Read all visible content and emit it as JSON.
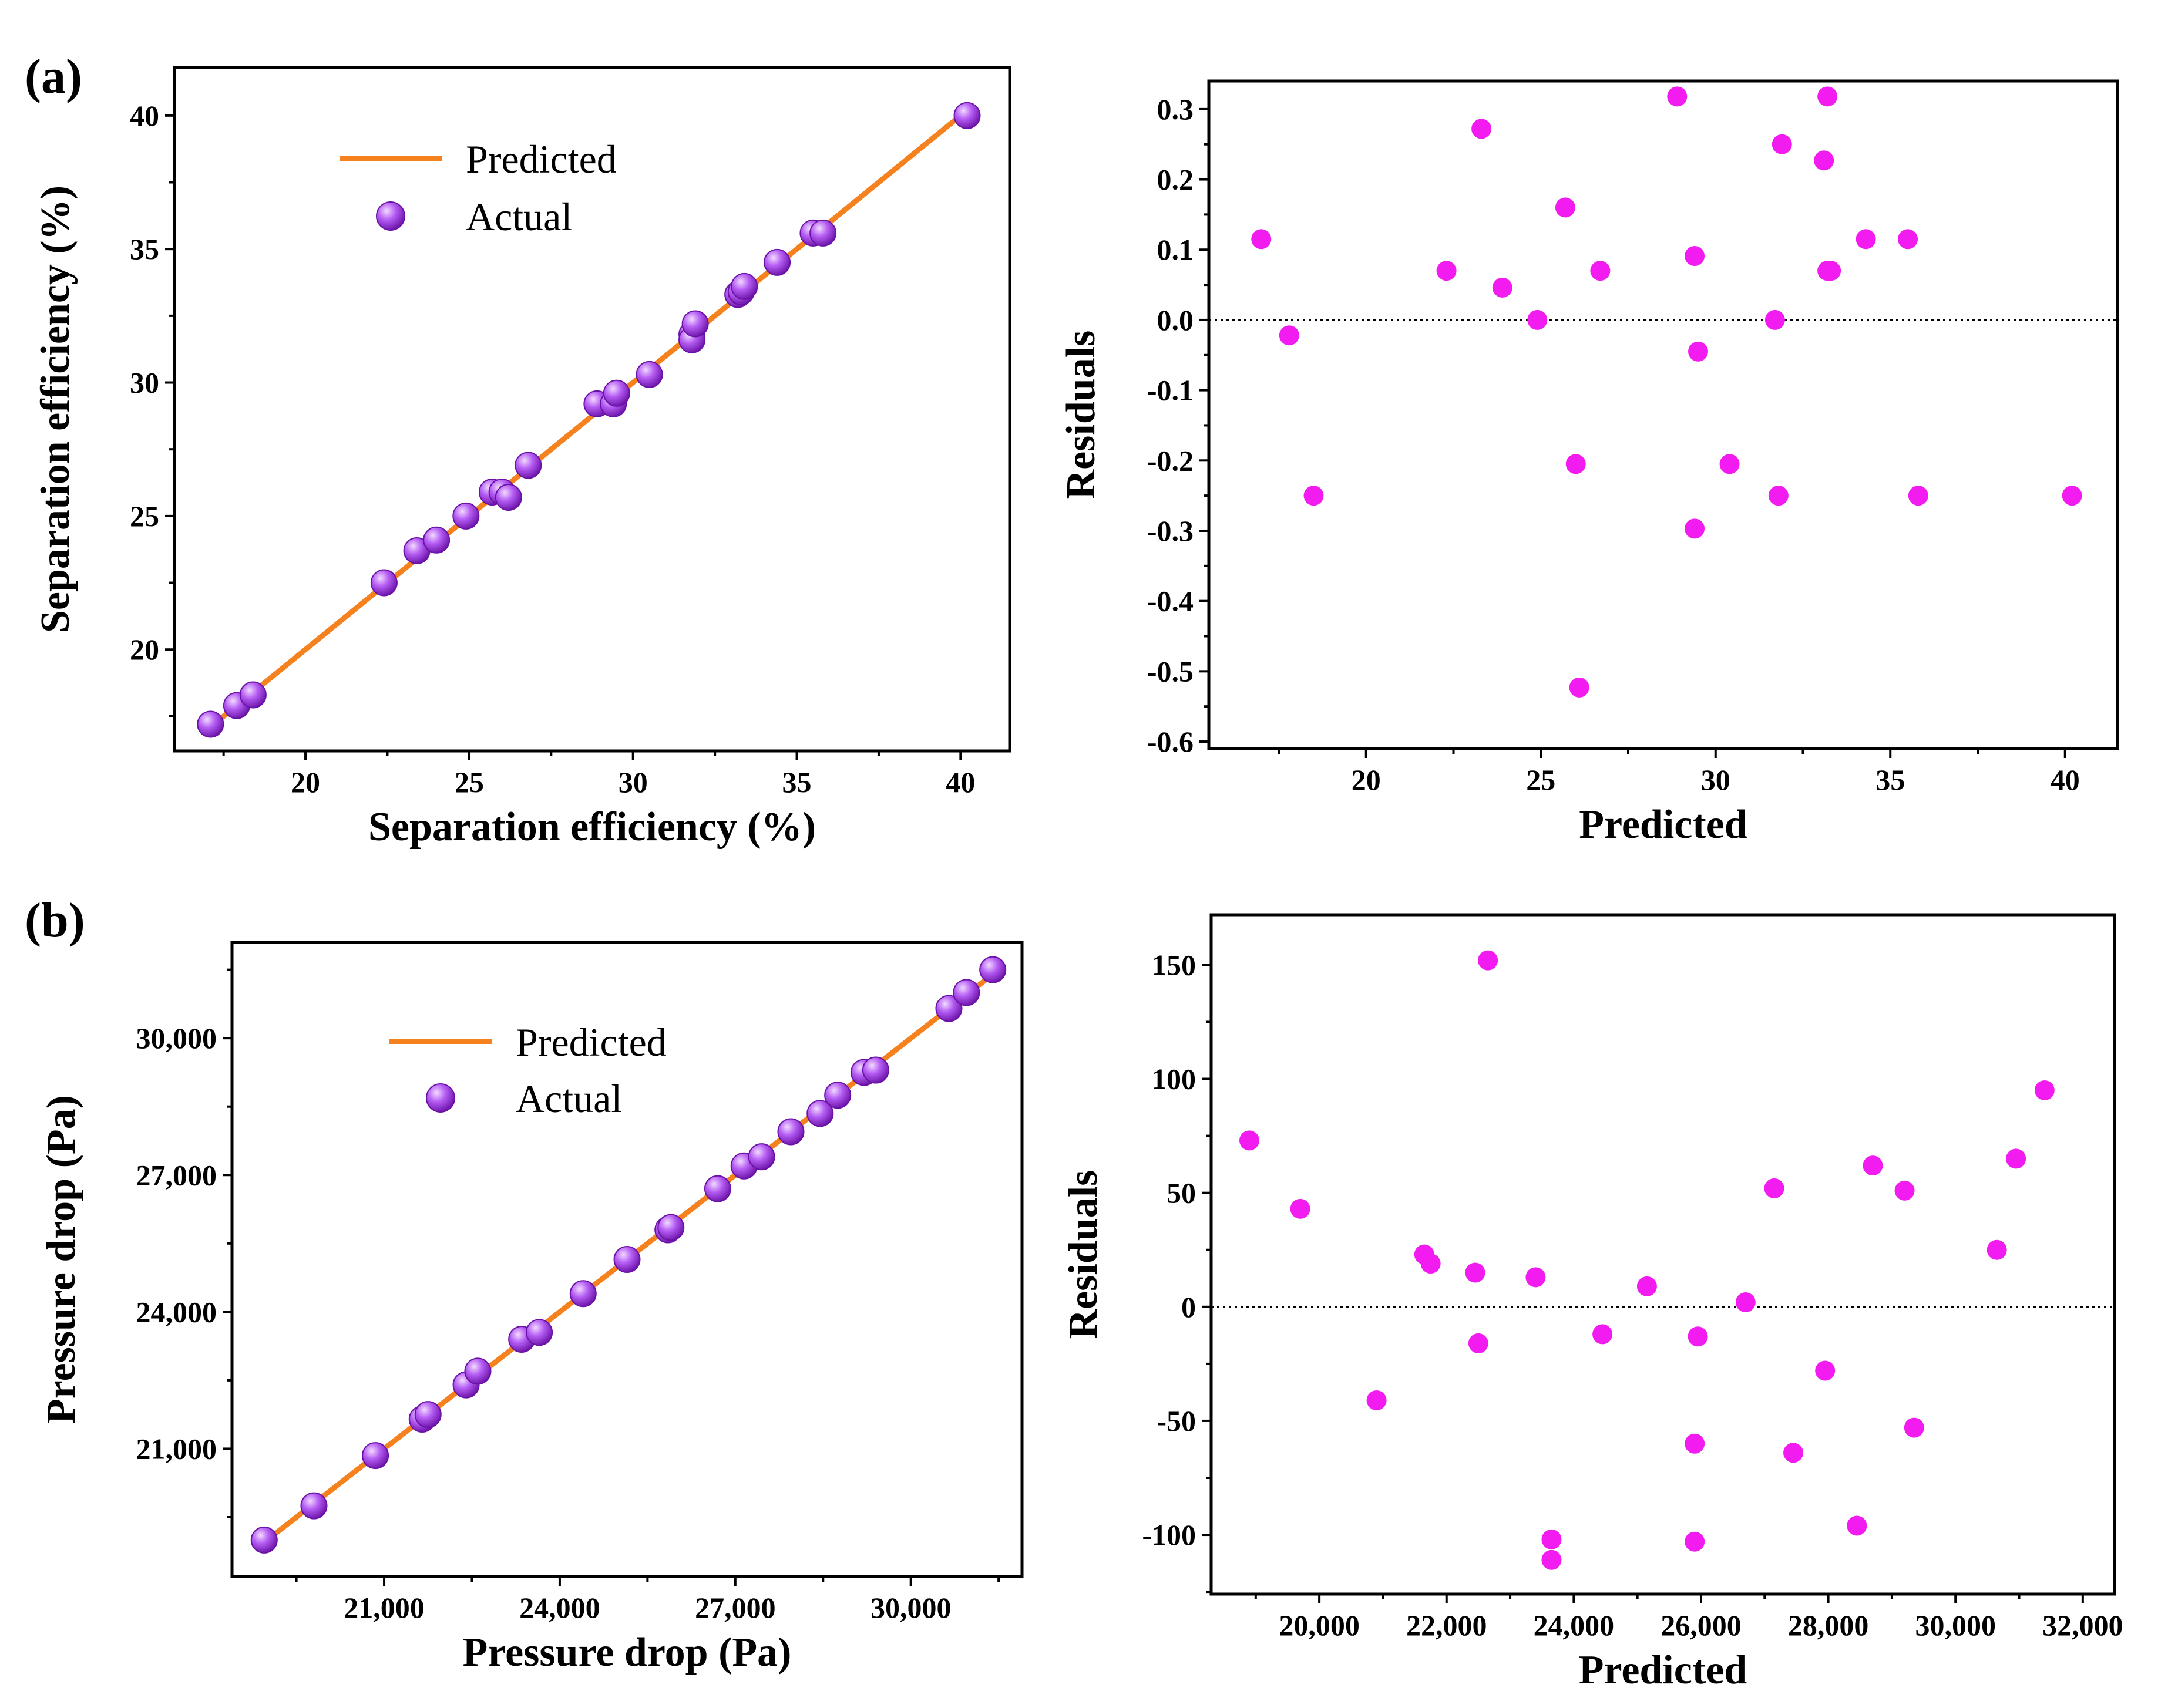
{
  "colors": {
    "line": "#F5821F",
    "sphere_light": "#F3DAFF",
    "sphere_mid": "#B45CF3",
    "sphere_dark": "#6A12A6",
    "residual_point": "#F21CF0"
  },
  "chart_data": [
    {
      "id": "a_left",
      "type": "scatter",
      "panel_label": "(a)",
      "xlabel": "Separation efficiency (%)",
      "ylabel": "Separation efficiency (%)",
      "xlim": [
        16,
        41.5
      ],
      "ylim": [
        16.2,
        41.8
      ],
      "xticks": [
        20,
        25,
        30,
        35,
        40
      ],
      "xtick_labels": [
        "20",
        "25",
        "30",
        "35",
        "40"
      ],
      "yticks": [
        20,
        25,
        30,
        35,
        40
      ],
      "ytick_labels": [
        "20",
        "25",
        "30",
        "35",
        "40"
      ],
      "legend": {
        "position": "top-left",
        "line_label": "Predicted",
        "point_label": "Actual"
      },
      "series": [
        {
          "name": "Predicted",
          "kind": "line",
          "x": [
            17.1,
            40.2
          ],
          "y": [
            17.1,
            40.2
          ]
        },
        {
          "name": "Actual",
          "kind": "points",
          "x": [
            17.1,
            17.9,
            18.4,
            22.4,
            23.4,
            24.0,
            24.9,
            25.7,
            26.0,
            26.2,
            26.8,
            28.9,
            29.4,
            29.5,
            30.5,
            31.8,
            31.8,
            31.9,
            33.2,
            33.3,
            33.4,
            34.4,
            35.5,
            35.8,
            40.2
          ],
          "y": [
            17.2,
            17.9,
            18.3,
            22.5,
            23.7,
            24.1,
            25.0,
            25.9,
            25.9,
            25.7,
            26.9,
            29.2,
            29.2,
            29.6,
            30.3,
            31.8,
            31.6,
            32.2,
            33.3,
            33.4,
            33.6,
            34.5,
            35.6,
            35.6,
            40.0
          ]
        }
      ]
    },
    {
      "id": "a_right",
      "type": "scatter",
      "xlabel": "Predicted",
      "ylabel": "Residuals",
      "xlim": [
        15.5,
        41.5
      ],
      "ylim": [
        -0.61,
        0.34
      ],
      "xticks": [
        20,
        25,
        30,
        35,
        40
      ],
      "xtick_labels": [
        "20",
        "25",
        "30",
        "35",
        "40"
      ],
      "yticks": [
        0.3,
        0.2,
        0.1,
        0.0,
        -0.1,
        -0.2,
        -0.3,
        -0.4,
        -0.5,
        -0.6
      ],
      "ytick_labels": [
        "0.3",
        "0.2",
        "0.1",
        "0.0",
        "-0.1",
        "-0.2",
        "-0.3",
        "-0.4",
        "-0.5",
        "-0.6"
      ],
      "series": [
        {
          "name": "Residuals",
          "x": [
            17.0,
            17.8,
            18.5,
            22.3,
            23.3,
            23.9,
            24.9,
            25.7,
            26.0,
            26.1,
            26.7,
            28.9,
            29.4,
            29.4,
            29.5,
            30.4,
            31.7,
            31.8,
            31.9,
            33.1,
            33.2,
            33.2,
            33.3,
            34.3,
            35.5,
            35.8,
            40.2
          ],
          "y": [
            0.115,
            -0.022,
            -0.25,
            0.07,
            0.272,
            0.046,
            0.0,
            0.16,
            -0.205,
            -0.523,
            0.07,
            0.318,
            0.091,
            -0.297,
            -0.045,
            -0.205,
            0.0,
            -0.25,
            0.25,
            0.227,
            0.07,
            0.318,
            0.07,
            0.115,
            0.115,
            -0.25,
            -0.25
          ]
        }
      ]
    },
    {
      "id": "b_left",
      "type": "scatter",
      "panel_label": "(b)",
      "xlabel": "Pressure drop (Pa)",
      "ylabel": "Pressure drop (Pa)",
      "xlim": [
        18400,
        31900
      ],
      "ylim": [
        18200,
        32100
      ],
      "xticks": [
        21000,
        24000,
        27000,
        30000
      ],
      "xtick_labels": [
        "21,000",
        "24,000",
        "27,000",
        "30,000"
      ],
      "yticks": [
        21000,
        24000,
        27000,
        30000
      ],
      "ytick_labels": [
        "21,000",
        "24,000",
        "27,000",
        "30,000"
      ],
      "legend": {
        "position": "top-left",
        "line_label": "Predicted",
        "point_label": "Actual"
      },
      "series": [
        {
          "name": "Predicted",
          "kind": "line",
          "x": [
            18900,
            31450
          ],
          "y": [
            18900,
            31450
          ]
        },
        {
          "name": "Actual",
          "kind": "points",
          "x": [
            18950,
            19800,
            20850,
            21650,
            21750,
            22400,
            22600,
            23350,
            23650,
            24400,
            25150,
            25850,
            25900,
            26700,
            27150,
            27450,
            27950,
            28450,
            28750,
            29200,
            29400,
            30650,
            30950,
            31400
          ],
          "y": [
            19000,
            19750,
            20850,
            21650,
            21750,
            22400,
            22700,
            23400,
            23550,
            24400,
            25150,
            25800,
            25850,
            26700,
            27200,
            27400,
            27950,
            28350,
            28750,
            29250,
            29300,
            30650,
            31000,
            31500
          ]
        }
      ]
    },
    {
      "id": "b_right",
      "type": "scatter",
      "xlabel": "Predicted",
      "ylabel": "Residuals",
      "xlim": [
        18300,
        32500
      ],
      "ylim": [
        -126,
        172
      ],
      "xticks": [
        20000,
        22000,
        24000,
        26000,
        28000,
        30000,
        32000
      ],
      "xtick_labels": [
        "20,000",
        "22,000",
        "24,000",
        "26,000",
        "28,000",
        "30,000",
        "32,000"
      ],
      "yticks": [
        150,
        100,
        50,
        0,
        -50,
        -100
      ],
      "ytick_labels": [
        "150",
        "100",
        "50",
        "0",
        "-50",
        "-100"
      ],
      "series": [
        {
          "name": "Residuals",
          "x": [
            18900,
            19700,
            20900,
            21650,
            21750,
            22450,
            22500,
            22650,
            23400,
            23650,
            23650,
            24450,
            25150,
            25900,
            25900,
            25950,
            26700,
            27150,
            27450,
            27950,
            28450,
            28700,
            29200,
            29350,
            30650,
            30950,
            31400
          ],
          "y": [
            73,
            43,
            -41,
            23,
            19,
            15,
            -16,
            152,
            13,
            -102,
            -111,
            -12,
            9,
            -60,
            -103,
            -13,
            2,
            52,
            -64,
            -28,
            -96,
            62,
            51,
            -53,
            25,
            65,
            95
          ]
        }
      ]
    }
  ]
}
